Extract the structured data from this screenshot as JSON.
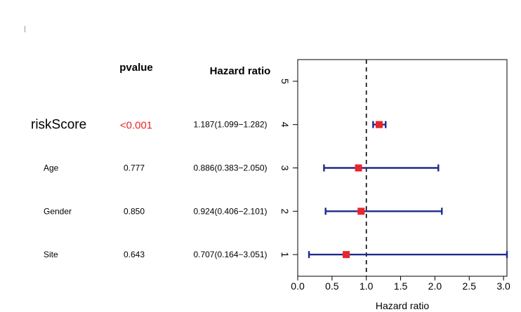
{
  "chart_data": {
    "type": "forest",
    "column_headers": {
      "pvalue": "pvalue",
      "hazard_ratio": "Hazard ratio"
    },
    "xlabel": "Hazard ratio",
    "xlim": [
      0,
      3.05
    ],
    "xticks": [
      "0.0",
      "0.5",
      "1.0",
      "1.5",
      "2.0",
      "2.5",
      "3.0"
    ],
    "xtick_values": [
      0,
      0.5,
      1.0,
      1.5,
      2.0,
      2.5,
      3.0
    ],
    "ylim": [
      0.5,
      5.5
    ],
    "yticks": [
      "1",
      "2",
      "3",
      "4",
      "5"
    ],
    "reference_line": 1.0,
    "rows": [
      {
        "name": "riskScore",
        "pvalue": "<0.001",
        "hr_text": "1.187(1.099−1.282)",
        "hr": 1.187,
        "lower": 1.099,
        "upper": 1.282,
        "y": 4,
        "highlight": true
      },
      {
        "name": "Age",
        "pvalue": "0.777",
        "hr_text": "0.886(0.383−2.050)",
        "hr": 0.886,
        "lower": 0.383,
        "upper": 2.05,
        "y": 3,
        "highlight": false
      },
      {
        "name": "Gender",
        "pvalue": "0.850",
        "hr_text": "0.924(0.406−2.101)",
        "hr": 0.924,
        "lower": 0.406,
        "upper": 2.101,
        "y": 2,
        "highlight": false
      },
      {
        "name": "Site",
        "pvalue": "0.643",
        "hr_text": "0.707(0.164−3.051)",
        "hr": 0.707,
        "lower": 0.164,
        "upper": 3.051,
        "y": 1,
        "highlight": false
      }
    ],
    "colors": {
      "whisker": "#1f2a8c",
      "point": "#e8262b",
      "highlight_text": "#e8262b",
      "text": "#000000"
    }
  }
}
